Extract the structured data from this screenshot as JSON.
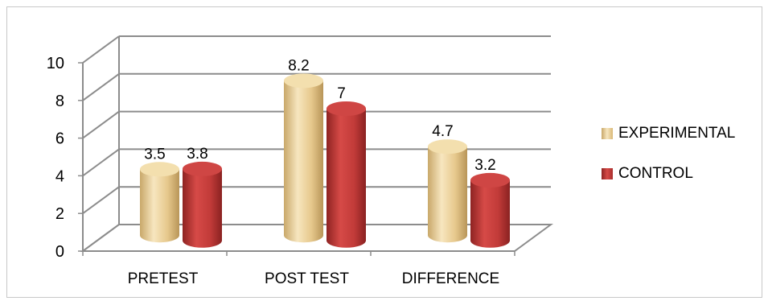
{
  "chart_data": {
    "type": "bar",
    "categories": [
      "PRETEST",
      "POST TEST",
      "DIFFERENCE"
    ],
    "series": [
      {
        "name": "EXPERIMENTAL",
        "values": [
          3.5,
          8.2,
          4.7
        ],
        "color": "#e9cf95"
      },
      {
        "name": "CONTROL",
        "values": [
          3.8,
          7,
          3.2
        ],
        "color": "#c33b3a"
      }
    ],
    "data_labels": [
      [
        "3.5",
        "3.8"
      ],
      [
        "8.2",
        "7"
      ],
      [
        "4.7",
        "3.2"
      ]
    ],
    "yticks": [
      "0",
      "2",
      "4",
      "6",
      "8",
      "10"
    ],
    "ylim": [
      0,
      10
    ],
    "grid": true,
    "legend_position": "right"
  }
}
